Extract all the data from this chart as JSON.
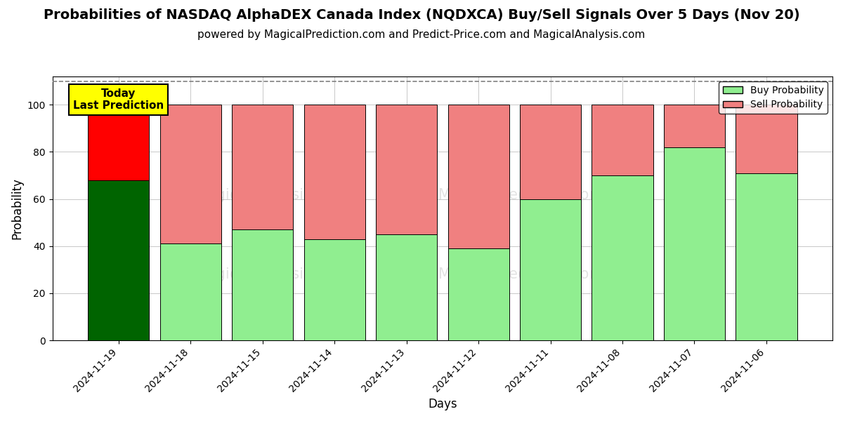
{
  "title": "Probabilities of NASDAQ AlphaDEX Canada Index (NQDXCA) Buy/Sell Signals Over 5 Days (Nov 20)",
  "subtitle": "powered by MagicalPrediction.com and Predict-Price.com and MagicalAnalysis.com",
  "xlabel": "Days",
  "ylabel": "Probability",
  "dates": [
    "2024-11-19",
    "2024-11-18",
    "2024-11-15",
    "2024-11-14",
    "2024-11-13",
    "2024-11-12",
    "2024-11-11",
    "2024-11-08",
    "2024-11-07",
    "2024-11-06"
  ],
  "buy_values": [
    68,
    41,
    47,
    43,
    45,
    39,
    60,
    70,
    82,
    71
  ],
  "sell_values": [
    32,
    59,
    53,
    57,
    55,
    61,
    40,
    30,
    18,
    29
  ],
  "today_buy_color": "#006400",
  "today_sell_color": "#ff0000",
  "buy_color": "#90EE90",
  "sell_color": "#F08080",
  "today_annotation": "Today\nLast Prediction",
  "annotation_bg_color": "#FFFF00",
  "ylim": [
    0,
    112
  ],
  "yticks": [
    0,
    20,
    40,
    60,
    80,
    100
  ],
  "dashed_line_y": 110,
  "legend_buy_label": "Buy Probability",
  "legend_sell_label": "Sell Probability",
  "title_fontsize": 14,
  "subtitle_fontsize": 11,
  "axis_label_fontsize": 12,
  "tick_fontsize": 10,
  "bar_width": 0.85
}
